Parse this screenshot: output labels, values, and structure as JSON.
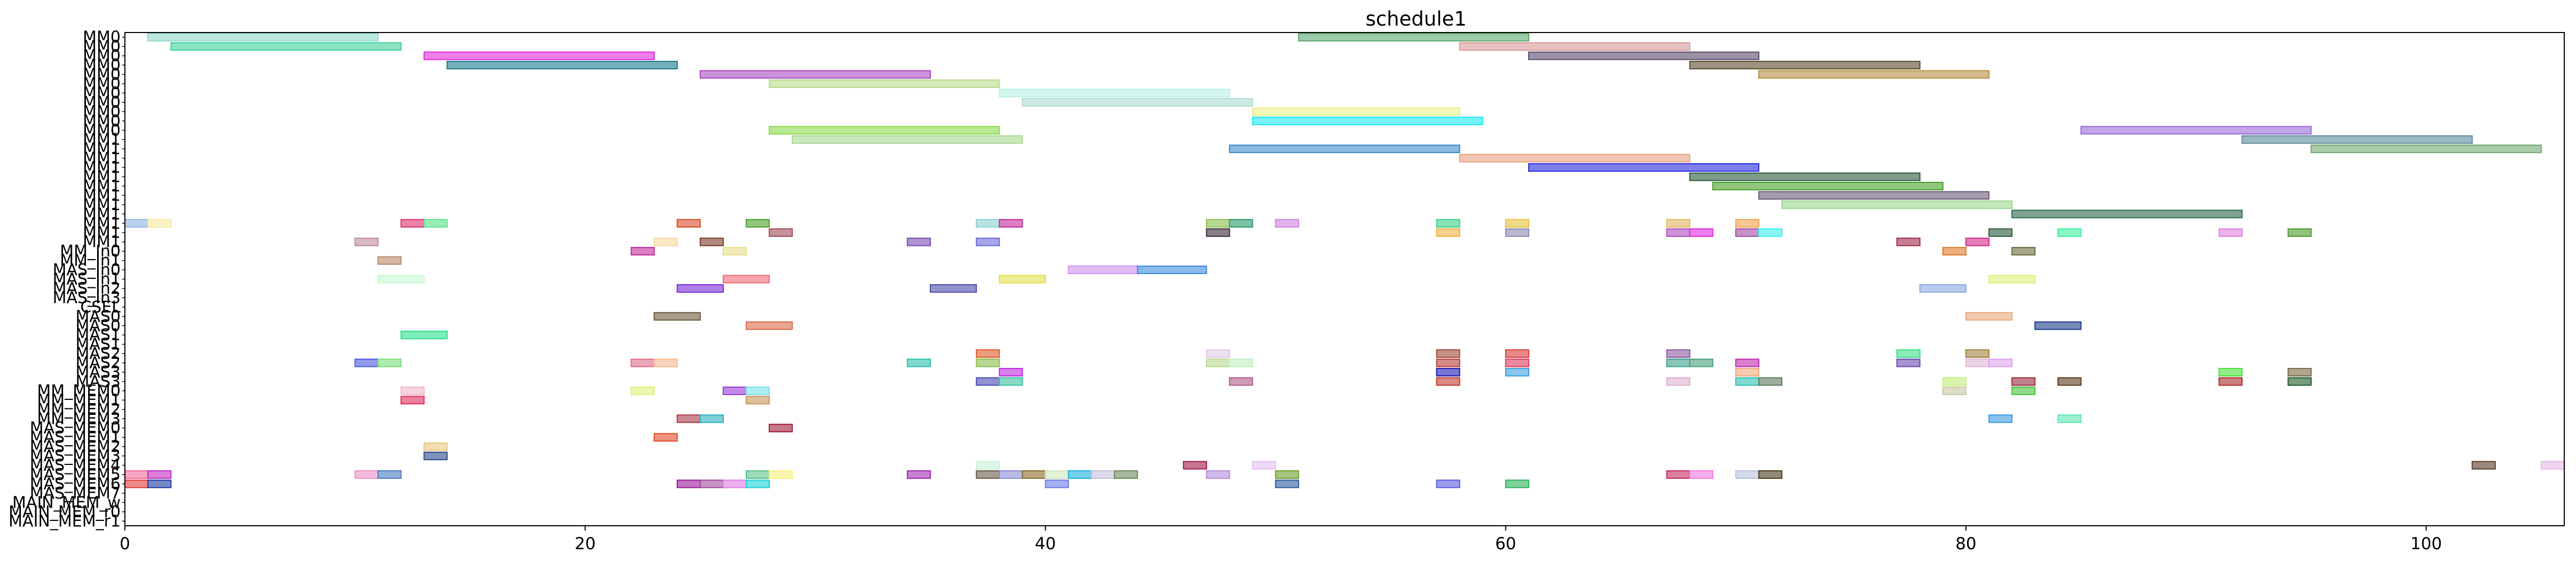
{
  "chart_data": {
    "type": "gantt",
    "title": "schedule1",
    "xlim": [
      0,
      106
    ],
    "x_ticks": [
      "0",
      "20",
      "40",
      "60",
      "80",
      "100"
    ],
    "x_tick_values": [
      0,
      20,
      40,
      60,
      80,
      100
    ],
    "grid": false,
    "y_labels": [
      "MM0",
      "MM0",
      "MM0",
      "MM0",
      "MM0",
      "MM0",
      "MM0",
      "MM0",
      "MM0",
      "MM0",
      "MM0",
      "MM1",
      "MM1",
      "MM1",
      "MM1",
      "MM1",
      "MM1",
      "MM1",
      "MM1",
      "MM1",
      "MM1",
      "MM1",
      "MM1",
      "MM_In0",
      "MM_In1",
      "MAS_In0",
      "MAS_In1",
      "MAS_In2",
      "MAS_In3",
      "CSEL",
      "MAS0",
      "MAS0",
      "MAS1",
      "MAS1",
      "MAS2",
      "MAS2",
      "MAS3",
      "MAS3",
      "MM_MEM0",
      "MM_MEM1",
      "MM_MEM2",
      "MM_MEM3",
      "MAS_MEM0",
      "MAS_MEM1",
      "MAS_MEM2",
      "MAS_MEM3",
      "MAS_MEM4",
      "MAS_MEM5",
      "MAS_MEM6",
      "MAS_MEM7",
      "MAIN_MEM_w",
      "MAIN_MEM_r0",
      "MAIN_MEM_r1"
    ],
    "bars": [
      {
        "row": 0,
        "start": 1,
        "end": 11,
        "color": "#8fd8cc"
      },
      {
        "row": 0,
        "start": 51,
        "end": 61,
        "color": "#5aa56a"
      },
      {
        "row": 1,
        "start": 2,
        "end": 12,
        "color": "#3fd19a"
      },
      {
        "row": 1,
        "start": 58,
        "end": 68,
        "color": "#d99a9a"
      },
      {
        "row": 2,
        "start": 13,
        "end": 23,
        "color": "#e02ad8"
      },
      {
        "row": 2,
        "start": 61,
        "end": 71,
        "color": "#5a4a6a"
      },
      {
        "row": 3,
        "start": 14,
        "end": 24,
        "color": "#1a7a8a"
      },
      {
        "row": 3,
        "start": 68,
        "end": 78,
        "color": "#5a4a2a"
      },
      {
        "row": 4,
        "start": 25,
        "end": 35,
        "color": "#a84ac0"
      },
      {
        "row": 4,
        "start": 71,
        "end": 81,
        "color": "#b89040"
      },
      {
        "row": 5,
        "start": 28,
        "end": 38,
        "color": "#b8dc8a"
      },
      {
        "row": 6,
        "start": 38,
        "end": 48,
        "color": "#b8f0e4"
      },
      {
        "row": 7,
        "start": 39,
        "end": 49,
        "color": "#aadcd0"
      },
      {
        "row": 8,
        "start": 49,
        "end": 58,
        "color": "#eef08a"
      },
      {
        "row": 9,
        "start": 49,
        "end": 59,
        "color": "#1ae8f0"
      },
      {
        "row": 10,
        "start": 28,
        "end": 38,
        "color": "#8ad84a"
      },
      {
        "row": 10,
        "start": 85,
        "end": 95,
        "color": "#9a6ad8"
      },
      {
        "row": 11,
        "start": 29,
        "end": 39,
        "color": "#a8d890"
      },
      {
        "row": 11,
        "start": 92,
        "end": 102,
        "color": "#5a8a9a"
      },
      {
        "row": 12,
        "start": 48,
        "end": 58,
        "color": "#3a8ac8"
      },
      {
        "row": 12,
        "start": 95,
        "end": 105,
        "color": "#70a870"
      },
      {
        "row": 13,
        "start": 58,
        "end": 68,
        "color": "#e8a080"
      },
      {
        "row": 14,
        "start": 61,
        "end": 71,
        "color": "#2a2ae0"
      },
      {
        "row": 15,
        "start": 68,
        "end": 78,
        "color": "#2a5a3a"
      },
      {
        "row": 16,
        "start": 69,
        "end": 79,
        "color": "#4aa02a"
      },
      {
        "row": 17,
        "start": 71,
        "end": 81,
        "color": "#6a5a7a"
      },
      {
        "row": 18,
        "start": 72,
        "end": 82,
        "color": "#9ad890"
      },
      {
        "row": 19,
        "start": 82,
        "end": 92,
        "color": "#2a6a4a"
      },
      {
        "row": 20,
        "start": 0,
        "end": 1,
        "color": "#8ab4e0"
      },
      {
        "row": 20,
        "start": 1,
        "end": 2,
        "color": "#f8e8a0"
      },
      {
        "row": 20,
        "start": 12,
        "end": 13,
        "color": "#e0306a"
      },
      {
        "row": 20,
        "start": 13,
        "end": 14,
        "color": "#5ae08a"
      },
      {
        "row": 20,
        "start": 24,
        "end": 25,
        "color": "#d84a2a"
      },
      {
        "row": 20,
        "start": 27,
        "end": 28,
        "color": "#4aa02a"
      },
      {
        "row": 20,
        "start": 37,
        "end": 38,
        "color": "#8ad0d0"
      },
      {
        "row": 20,
        "start": 38,
        "end": 39,
        "color": "#c02a9a"
      },
      {
        "row": 20,
        "start": 47,
        "end": 48,
        "color": "#8ac04a"
      },
      {
        "row": 20,
        "start": 48,
        "end": 49,
        "color": "#2a9a6a"
      },
      {
        "row": 20,
        "start": 50,
        "end": 51,
        "color": "#d080e0"
      },
      {
        "row": 20,
        "start": 57,
        "end": 58,
        "color": "#3ad08a"
      },
      {
        "row": 20,
        "start": 60,
        "end": 61,
        "color": "#e8c040"
      },
      {
        "row": 20,
        "start": 67,
        "end": 68,
        "color": "#e0b860"
      },
      {
        "row": 20,
        "start": 70,
        "end": 71,
        "color": "#f0a050"
      },
      {
        "row": 21,
        "start": 28,
        "end": 29,
        "color": "#a04a5a"
      },
      {
        "row": 21,
        "start": 47,
        "end": 48,
        "color": "#3a2a3a"
      },
      {
        "row": 21,
        "start": 57,
        "end": 58,
        "color": "#f0b040"
      },
      {
        "row": 21,
        "start": 60,
        "end": 61,
        "color": "#8a8ab0"
      },
      {
        "row": 21,
        "start": 67,
        "end": 68,
        "color": "#b04ac0"
      },
      {
        "row": 21,
        "start": 68,
        "end": 69,
        "color": "#e02ae0"
      },
      {
        "row": 21,
        "start": 70,
        "end": 71,
        "color": "#a04aa0"
      },
      {
        "row": 21,
        "start": 71,
        "end": 72,
        "color": "#3af0f0"
      },
      {
        "row": 21,
        "start": 81,
        "end": 82,
        "color": "#2a5a3a"
      },
      {
        "row": 21,
        "start": 84,
        "end": 85,
        "color": "#3af0a0"
      },
      {
        "row": 21,
        "start": 91,
        "end": 92,
        "color": "#e080e0"
      },
      {
        "row": 21,
        "start": 94,
        "end": 95,
        "color": "#4a9a2a"
      },
      {
        "row": 22,
        "start": 10,
        "end": 11,
        "color": "#c08a9a"
      },
      {
        "row": 22,
        "start": 23,
        "end": 24,
        "color": "#f8d8a0"
      },
      {
        "row": 22,
        "start": 25,
        "end": 26,
        "color": "#7a3a2a"
      },
      {
        "row": 22,
        "start": 34,
        "end": 35,
        "color": "#7a4ab0"
      },
      {
        "row": 22,
        "start": 37,
        "end": 38,
        "color": "#6a6ad8"
      },
      {
        "row": 22,
        "start": 77,
        "end": 78,
        "color": "#a02a4a"
      },
      {
        "row": 22,
        "start": 80,
        "end": 81,
        "color": "#d02a8a"
      },
      {
        "row": 23,
        "start": 22,
        "end": 23,
        "color": "#c02a9a"
      },
      {
        "row": 23,
        "start": 26,
        "end": 27,
        "color": "#e8e08a"
      },
      {
        "row": 23,
        "start": 79,
        "end": 80,
        "color": "#e07a2a"
      },
      {
        "row": 23,
        "start": 82,
        "end": 83,
        "color": "#6a6a3a"
      },
      {
        "row": 24,
        "start": 11,
        "end": 12,
        "color": "#b88a6a"
      },
      {
        "row": 25,
        "start": 41,
        "end": 44,
        "color": "#d090f0"
      },
      {
        "row": 25,
        "start": 44,
        "end": 47,
        "color": "#3a8ae0"
      },
      {
        "row": 26,
        "start": 11,
        "end": 13,
        "color": "#c8f8d0"
      },
      {
        "row": 26,
        "start": 26,
        "end": 28,
        "color": "#f06a7a"
      },
      {
        "row": 26,
        "start": 38,
        "end": 40,
        "color": "#e0e04a"
      },
      {
        "row": 26,
        "start": 81,
        "end": 83,
        "color": "#e0f07a"
      },
      {
        "row": 27,
        "start": 24,
        "end": 26,
        "color": "#7a2ad8"
      },
      {
        "row": 27,
        "start": 35,
        "end": 37,
        "color": "#4a4aaa"
      },
      {
        "row": 27,
        "start": 78,
        "end": 80,
        "color": "#8aa8e0"
      },
      {
        "row": 30,
        "start": 23,
        "end": 25,
        "color": "#6a5a3a"
      },
      {
        "row": 30,
        "start": 80,
        "end": 82,
        "color": "#e8a878"
      },
      {
        "row": 31,
        "start": 27,
        "end": 29,
        "color": "#d86a4a"
      },
      {
        "row": 31,
        "start": 83,
        "end": 85,
        "color": "#1a3a8a"
      },
      {
        "row": 32,
        "start": 12,
        "end": 14,
        "color": "#2ae08a"
      },
      {
        "row": 34,
        "start": 37,
        "end": 38,
        "color": "#e05a2a"
      },
      {
        "row": 34,
        "start": 47,
        "end": 48,
        "color": "#e0c8e8"
      },
      {
        "row": 34,
        "start": 57,
        "end": 58,
        "color": "#a04a3a"
      },
      {
        "row": 34,
        "start": 60,
        "end": 61,
        "color": "#d83a3a"
      },
      {
        "row": 34,
        "start": 67,
        "end": 68,
        "color": "#8a5aa0"
      },
      {
        "row": 34,
        "start": 77,
        "end": 78,
        "color": "#3ae08a"
      },
      {
        "row": 34,
        "start": 80,
        "end": 81,
        "color": "#a08040"
      },
      {
        "row": 35,
        "start": 10,
        "end": 11,
        "color": "#4a5ae0"
      },
      {
        "row": 35,
        "start": 11,
        "end": 12,
        "color": "#7ae07a"
      },
      {
        "row": 35,
        "start": 22,
        "end": 23,
        "color": "#e06a8a"
      },
      {
        "row": 35,
        "start": 23,
        "end": 24,
        "color": "#f8b890"
      },
      {
        "row": 35,
        "start": 34,
        "end": 35,
        "color": "#2ac0b0"
      },
      {
        "row": 35,
        "start": 37,
        "end": 38,
        "color": "#8ac04a"
      },
      {
        "row": 35,
        "start": 47,
        "end": 48,
        "color": "#b8d890"
      },
      {
        "row": 35,
        "start": 48,
        "end": 49,
        "color": "#c0f0c0"
      },
      {
        "row": 35,
        "start": 57,
        "end": 58,
        "color": "#b83a3a"
      },
      {
        "row": 35,
        "start": 60,
        "end": 61,
        "color": "#e03a5a"
      },
      {
        "row": 35,
        "start": 67,
        "end": 68,
        "color": "#3aa08a"
      },
      {
        "row": 35,
        "start": 68,
        "end": 69,
        "color": "#4aa07a"
      },
      {
        "row": 35,
        "start": 70,
        "end": 71,
        "color": "#c02ab0"
      },
      {
        "row": 35,
        "start": 77,
        "end": 78,
        "color": "#6a4ab0"
      },
      {
        "row": 35,
        "start": 80,
        "end": 81,
        "color": "#e0b8d8"
      },
      {
        "row": 35,
        "start": 81,
        "end": 82,
        "color": "#e0a0f0"
      },
      {
        "row": 36,
        "start": 38,
        "end": 39,
        "color": "#c02ae0"
      },
      {
        "row": 36,
        "start": 57,
        "end": 58,
        "color": "#1a1ab0"
      },
      {
        "row": 36,
        "start": 60,
        "end": 61,
        "color": "#3aa0e0"
      },
      {
        "row": 36,
        "start": 70,
        "end": 71,
        "color": "#f0a87a"
      },
      {
        "row": 36,
        "start": 91,
        "end": 92,
        "color": "#4ae03a"
      },
      {
        "row": 36,
        "start": 94,
        "end": 95,
        "color": "#7a6a4a"
      },
      {
        "row": 37,
        "start": 37,
        "end": 38,
        "color": "#4a4ab0"
      },
      {
        "row": 37,
        "start": 38,
        "end": 39,
        "color": "#3ac0a0"
      },
      {
        "row": 37,
        "start": 48,
        "end": 49,
        "color": "#b05a8a"
      },
      {
        "row": 37,
        "start": 57,
        "end": 58,
        "color": "#c03a2a"
      },
      {
        "row": 37,
        "start": 67,
        "end": 68,
        "color": "#e0b0d0"
      },
      {
        "row": 37,
        "start": 70,
        "end": 71,
        "color": "#2ac0b0"
      },
      {
        "row": 37,
        "start": 71,
        "end": 72,
        "color": "#5a7a5a"
      },
      {
        "row": 37,
        "start": 79,
        "end": 80,
        "color": "#c0f07a"
      },
      {
        "row": 37,
        "start": 82,
        "end": 83,
        "color": "#9a2a3a"
      },
      {
        "row": 37,
        "start": 84,
        "end": 85,
        "color": "#5a3a1a"
      },
      {
        "row": 37,
        "start": 91,
        "end": 92,
        "color": "#a82a2a"
      },
      {
        "row": 37,
        "start": 94,
        "end": 95,
        "color": "#1a5a2a"
      },
      {
        "row": 38,
        "start": 12,
        "end": 13,
        "color": "#f0b8c8"
      },
      {
        "row": 38,
        "start": 22,
        "end": 23,
        "color": "#e0f07a"
      },
      {
        "row": 38,
        "start": 26,
        "end": 27,
        "color": "#9a3ad8"
      },
      {
        "row": 38,
        "start": 27,
        "end": 28,
        "color": "#7ae0e8"
      },
      {
        "row": 38,
        "start": 79,
        "end": 80,
        "color": "#c8c8a0"
      },
      {
        "row": 38,
        "start": 82,
        "end": 83,
        "color": "#4ac03a"
      },
      {
        "row": 39,
        "start": 12,
        "end": 13,
        "color": "#e02a5a"
      },
      {
        "row": 39,
        "start": 27,
        "end": 28,
        "color": "#c8965a"
      },
      {
        "row": 41,
        "start": 24,
        "end": 25,
        "color": "#a83a4a"
      },
      {
        "row": 41,
        "start": 25,
        "end": 26,
        "color": "#2ab0c0"
      },
      {
        "row": 41,
        "start": 81,
        "end": 82,
        "color": "#3a9ae0"
      },
      {
        "row": 41,
        "start": 84,
        "end": 85,
        "color": "#5ae8b0"
      },
      {
        "row": 42,
        "start": 28,
        "end": 29,
        "color": "#a01a3a"
      },
      {
        "row": 43,
        "start": 23,
        "end": 24,
        "color": "#e04a2a"
      },
      {
        "row": 44,
        "start": 13,
        "end": 14,
        "color": "#e8c880"
      },
      {
        "row": 45,
        "start": 13,
        "end": 14,
        "color": "#2a4a8a"
      },
      {
        "row": 46,
        "start": 37,
        "end": 38,
        "color": "#c8f0d8"
      },
      {
        "row": 46,
        "start": 46,
        "end": 47,
        "color": "#a01a4a"
      },
      {
        "row": 46,
        "start": 49,
        "end": 50,
        "color": "#e8c0f0"
      },
      {
        "row": 46,
        "start": 102,
        "end": 103,
        "color": "#5a3a2a"
      },
      {
        "row": 46,
        "start": 105,
        "end": 106,
        "color": "#e8b8e8"
      },
      {
        "row": 47,
        "start": 0,
        "end": 1,
        "color": "#f06a9a"
      },
      {
        "row": 47,
        "start": 1,
        "end": 2,
        "color": "#c02ac0"
      },
      {
        "row": 47,
        "start": 10,
        "end": 11,
        "color": "#f090c8"
      },
      {
        "row": 47,
        "start": 11,
        "end": 12,
        "color": "#4a7ac0"
      },
      {
        "row": 47,
        "start": 27,
        "end": 28,
        "color": "#5ac08a"
      },
      {
        "row": 47,
        "start": 28,
        "end": 29,
        "color": "#f8f07a"
      },
      {
        "row": 47,
        "start": 34,
        "end": 35,
        "color": "#a02ab0"
      },
      {
        "row": 47,
        "start": 37,
        "end": 38,
        "color": "#6a5a4a"
      },
      {
        "row": 47,
        "start": 38,
        "end": 39,
        "color": "#8a8ad8"
      },
      {
        "row": 47,
        "start": 39,
        "end": 40,
        "color": "#8a6a2a"
      },
      {
        "row": 47,
        "start": 40,
        "end": 41,
        "color": "#d0e8c0"
      },
      {
        "row": 47,
        "start": 41,
        "end": 42,
        "color": "#1ab0e0"
      },
      {
        "row": 47,
        "start": 42,
        "end": 43,
        "color": "#c8c0d8"
      },
      {
        "row": 47,
        "start": 43,
        "end": 44,
        "color": "#6a8a5a"
      },
      {
        "row": 47,
        "start": 47,
        "end": 48,
        "color": "#b88ad8"
      },
      {
        "row": 47,
        "start": 50,
        "end": 51,
        "color": "#6aa02a"
      },
      {
        "row": 47,
        "start": 67,
        "end": 68,
        "color": "#c02a5a"
      },
      {
        "row": 47,
        "start": 68,
        "end": 69,
        "color": "#f07ae0"
      },
      {
        "row": 47,
        "start": 70,
        "end": 71,
        "color": "#b8c0e0"
      },
      {
        "row": 47,
        "start": 71,
        "end": 72,
        "color": "#4a3a1a"
      },
      {
        "row": 48,
        "start": 0,
        "end": 1,
        "color": "#e03a3a"
      },
      {
        "row": 48,
        "start": 1,
        "end": 2,
        "color": "#1a3aa0"
      },
      {
        "row": 48,
        "start": 24,
        "end": 25,
        "color": "#9a1a9a"
      },
      {
        "row": 48,
        "start": 25,
        "end": 26,
        "color": "#a04a9a"
      },
      {
        "row": 48,
        "start": 26,
        "end": 27,
        "color": "#e07ae0"
      },
      {
        "row": 48,
        "start": 27,
        "end": 28,
        "color": "#1ad0d8"
      },
      {
        "row": 48,
        "start": 40,
        "end": 41,
        "color": "#6a7ae8"
      },
      {
        "row": 48,
        "start": 50,
        "end": 51,
        "color": "#2a5a9a"
      },
      {
        "row": 48,
        "start": 57,
        "end": 58,
        "color": "#5a5ae0"
      },
      {
        "row": 48,
        "start": 60,
        "end": 61,
        "color": "#2ab05a"
      }
    ]
  }
}
